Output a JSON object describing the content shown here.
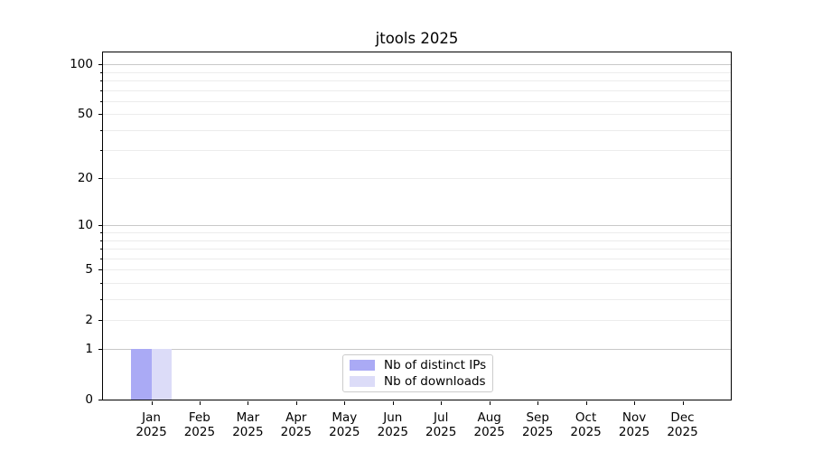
{
  "chart_data": {
    "type": "bar",
    "title": "jtools 2025",
    "categories": [
      "Jan 2025",
      "Feb 2025",
      "Mar 2025",
      "Apr 2025",
      "May 2025",
      "Jun 2025",
      "Jul 2025",
      "Aug 2025",
      "Sep 2025",
      "Oct 2025",
      "Nov 2025",
      "Dec 2025"
    ],
    "series": [
      {
        "name": "Nb of distinct IPs",
        "color": "#aaaaf5",
        "values": [
          1,
          0,
          0,
          0,
          0,
          0,
          0,
          0,
          0,
          0,
          0,
          0
        ]
      },
      {
        "name": "Nb of downloads",
        "color": "#dcdcf8",
        "values": [
          1,
          0,
          0,
          0,
          0,
          0,
          0,
          0,
          0,
          0,
          0,
          0
        ]
      }
    ],
    "xlabel": "",
    "ylabel": "",
    "y_axis": {
      "scale": "log1p",
      "max": 118,
      "labeled_ticks": [
        0,
        1,
        2,
        5,
        10,
        20,
        50,
        100
      ],
      "major_gridlines": [
        1,
        10,
        100
      ],
      "minor_gridlines": [
        2,
        3,
        4,
        5,
        6,
        7,
        8,
        9,
        20,
        30,
        40,
        50,
        60,
        70,
        80,
        90
      ]
    },
    "grid": "on",
    "legend_position": "lower center",
    "colors": {
      "major_grid": "#c9c9c9",
      "minor_grid": "#ececec",
      "spine": "#000000",
      "background": "#ffffff"
    }
  }
}
